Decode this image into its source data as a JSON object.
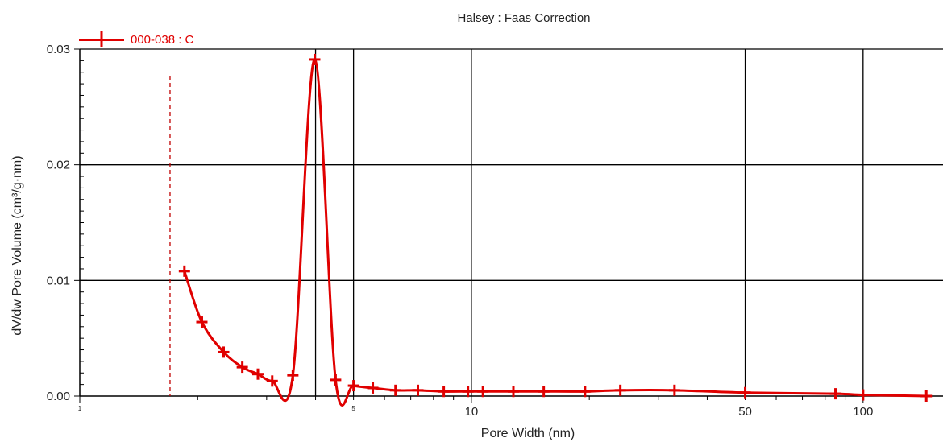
{
  "chart_data": {
    "type": "line",
    "title": "Halsey : Faas Correction",
    "xlabel": "Pore Width (nm)",
    "ylabel": "dV/dw Pore Volume (cm³/g·nm)",
    "x_scale": "log",
    "xlim": [
      1,
      160
    ],
    "ylim": [
      0,
      0.03
    ],
    "y_ticks": [
      "0.00",
      "0.01",
      "0.02",
      "0.03"
    ],
    "x_ticks": [
      {
        "value": 1,
        "label": "1",
        "small": true
      },
      {
        "value": 5,
        "label": "5",
        "small": true
      },
      {
        "value": 10,
        "label": "10",
        "small": false
      },
      {
        "value": 50,
        "label": "50",
        "small": false
      },
      {
        "value": 100,
        "label": "100",
        "small": false
      }
    ],
    "x_gridlines": [
      4,
      5,
      10,
      50,
      100
    ],
    "y_gridlines": [
      0.01,
      0.02,
      0.03
    ],
    "reference_line_x": 1.7,
    "grid": true,
    "legend_position": "top-left",
    "series": [
      {
        "name": "000-038 : C",
        "color": "#e00000",
        "points": [
          [
            1.85,
            0.0108
          ],
          [
            2.05,
            0.0064
          ],
          [
            2.33,
            0.0038
          ],
          [
            2.6,
            0.0025
          ],
          [
            2.85,
            0.0019
          ],
          [
            3.1,
            0.0013
          ],
          [
            3.5,
            0.0018
          ],
          [
            3.98,
            0.0291
          ],
          [
            4.5,
            0.0014
          ],
          [
            5.0,
            0.0009
          ],
          [
            5.6,
            0.0007
          ],
          [
            6.4,
            0.0005
          ],
          [
            7.3,
            0.0005
          ],
          [
            8.5,
            0.0004
          ],
          [
            9.8,
            0.0004
          ],
          [
            10.7,
            0.0004
          ],
          [
            12.8,
            0.0004
          ],
          [
            15.3,
            0.0004
          ],
          [
            19.5,
            0.0004
          ],
          [
            24.0,
            0.0005
          ],
          [
            33.0,
            0.0005
          ],
          [
            50.0,
            0.0003
          ],
          [
            85.0,
            0.0002
          ],
          [
            100.0,
            0.0001
          ],
          [
            145.0,
            0.0
          ]
        ]
      }
    ]
  }
}
